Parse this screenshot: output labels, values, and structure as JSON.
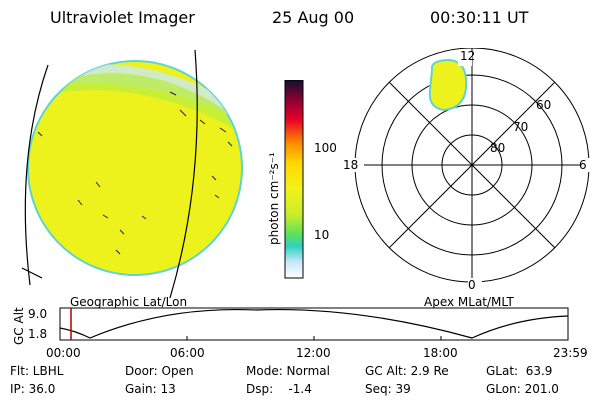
{
  "header": {
    "instrument": "Ultraviolet Imager",
    "date": "25 Aug 00",
    "time": "00:30:11  UT"
  },
  "colorbar": {
    "unit_label": "photon cm⁻²s⁻¹",
    "ticks": [
      "100",
      "10"
    ],
    "colors": [
      "#101030",
      "#8b0033",
      "#e8002a",
      "#ff8c00",
      "#ffd800",
      "#f2f21a",
      "#c8ee2a",
      "#5ce05c",
      "#30d0c0",
      "#c8e8f8",
      "#ffffff"
    ]
  },
  "panels": {
    "left_caption": "Geographic Lat/Lon",
    "right_caption": "Apex MLat/MLT"
  },
  "polar_plot": {
    "mlt_labels": {
      "top": "12",
      "right": "6",
      "bottom": "0",
      "left": "18"
    },
    "lat_labels": [
      "60",
      "70",
      "80"
    ]
  },
  "altitude_strip": {
    "axis_title": "GC Alt",
    "y_ticks": [
      "9.0",
      "1.8"
    ],
    "x_ticks": [
      "00:00",
      "06:00",
      "12:00",
      "18:00",
      "23:59"
    ]
  },
  "info": {
    "col1": [
      "Flt: LBHL",
      "IP: 36.0"
    ],
    "col2": [
      "Door: Open",
      "Gain: 13"
    ],
    "col3": [
      "Mode: Normal",
      "Dsp:    -1.4"
    ],
    "col4": [
      "GC Alt: 2.9 Re",
      "Seq: 39"
    ],
    "col5": [
      "GLat:  63.9",
      "GLon: 201.0"
    ]
  }
}
